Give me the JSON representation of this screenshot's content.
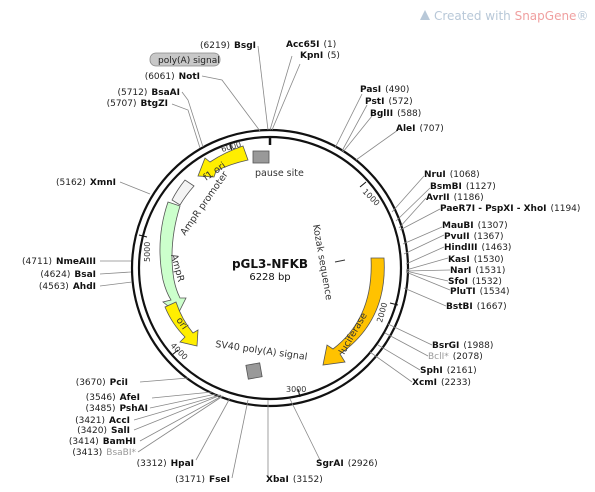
{
  "plasmid": {
    "name": "pGL3-NFKB",
    "size": "6228 bp"
  },
  "watermark": {
    "prefix": "Created with ",
    "brand": "SnapGene",
    "suffix": "®"
  },
  "ticks": [
    "1000",
    "2000",
    "3000",
    "4000",
    "5000",
    "6000"
  ],
  "features": [
    "f1 ori",
    "AmpR promoter",
    "AmpR",
    "ori",
    "SV40 poly(A) signal",
    "luciferase",
    "Kozak sequence",
    "pause site"
  ],
  "poly_a_tag": "poly(A) signal",
  "sites": [
    {
      "pos": "(6219)",
      "name": "BsgI"
    },
    {
      "pos": "(6061)",
      "name": "NotI"
    },
    {
      "pos": "(5712)",
      "name": "BsaAI"
    },
    {
      "pos": "(5707)",
      "name": "BtgZI"
    },
    {
      "pos": "(5162)",
      "name": "XmnI"
    },
    {
      "pos": "(4711)",
      "name": "NmeAIII"
    },
    {
      "pos": "(4624)",
      "name": "BsaI"
    },
    {
      "pos": "(4563)",
      "name": "AhdI"
    },
    {
      "pos": "(3670)",
      "name": "PciI"
    },
    {
      "pos": "(3546)",
      "name": "AfeI"
    },
    {
      "pos": "(3485)",
      "name": "PshAI"
    },
    {
      "pos": "(3421)",
      "name": "AccI"
    },
    {
      "pos": "(3420)",
      "name": "SalI"
    },
    {
      "pos": "(3414)",
      "name": "BamHI"
    },
    {
      "pos": "(3413)",
      "name": "BsaBI*"
    },
    {
      "pos": "(3312)",
      "name": "HpaI"
    },
    {
      "pos": "(3171)",
      "name": "FseI"
    },
    {
      "pos": "(3152)",
      "name": "XbaI"
    },
    {
      "pos": "(2926)",
      "name": "SgrAI"
    },
    {
      "pos": "(1)",
      "name": "Acc65I"
    },
    {
      "pos": "(5)",
      "name": "KpnI"
    },
    {
      "pos": "(490)",
      "name": "PasI"
    },
    {
      "pos": "(572)",
      "name": "PstI"
    },
    {
      "pos": "(588)",
      "name": "BglII"
    },
    {
      "pos": "(707)",
      "name": "AleI"
    },
    {
      "pos": "(1068)",
      "name": "NruI"
    },
    {
      "pos": "(1127)",
      "name": "BsmBI"
    },
    {
      "pos": "(1186)",
      "name": "AvrII"
    },
    {
      "pos": "(1194)",
      "name": "PaeR7I - PspXI - XhoI"
    },
    {
      "pos": "(1307)",
      "name": "MauBI"
    },
    {
      "pos": "(1367)",
      "name": "PvuII"
    },
    {
      "pos": "(1463)",
      "name": "HindIII"
    },
    {
      "pos": "(1530)",
      "name": "KasI"
    },
    {
      "pos": "(1531)",
      "name": "NarI"
    },
    {
      "pos": "(1532)",
      "name": "SfoI"
    },
    {
      "pos": "(1534)",
      "name": "PluTI"
    },
    {
      "pos": "(1667)",
      "name": "BstBI"
    },
    {
      "pos": "(1988)",
      "name": "BsrGI"
    },
    {
      "pos": "(2078)",
      "name": "BclI*"
    },
    {
      "pos": "(2161)",
      "name": "SphI"
    },
    {
      "pos": "(2233)",
      "name": "XcmI"
    }
  ],
  "colors": {
    "ring": "#111111",
    "yellow": "#ffee00",
    "orange": "#ffc200",
    "green": "#ccffcc",
    "white_arrow": "#f4f4f4",
    "watermark": "#b8c8d8",
    "brand": "#f0a0a0"
  }
}
